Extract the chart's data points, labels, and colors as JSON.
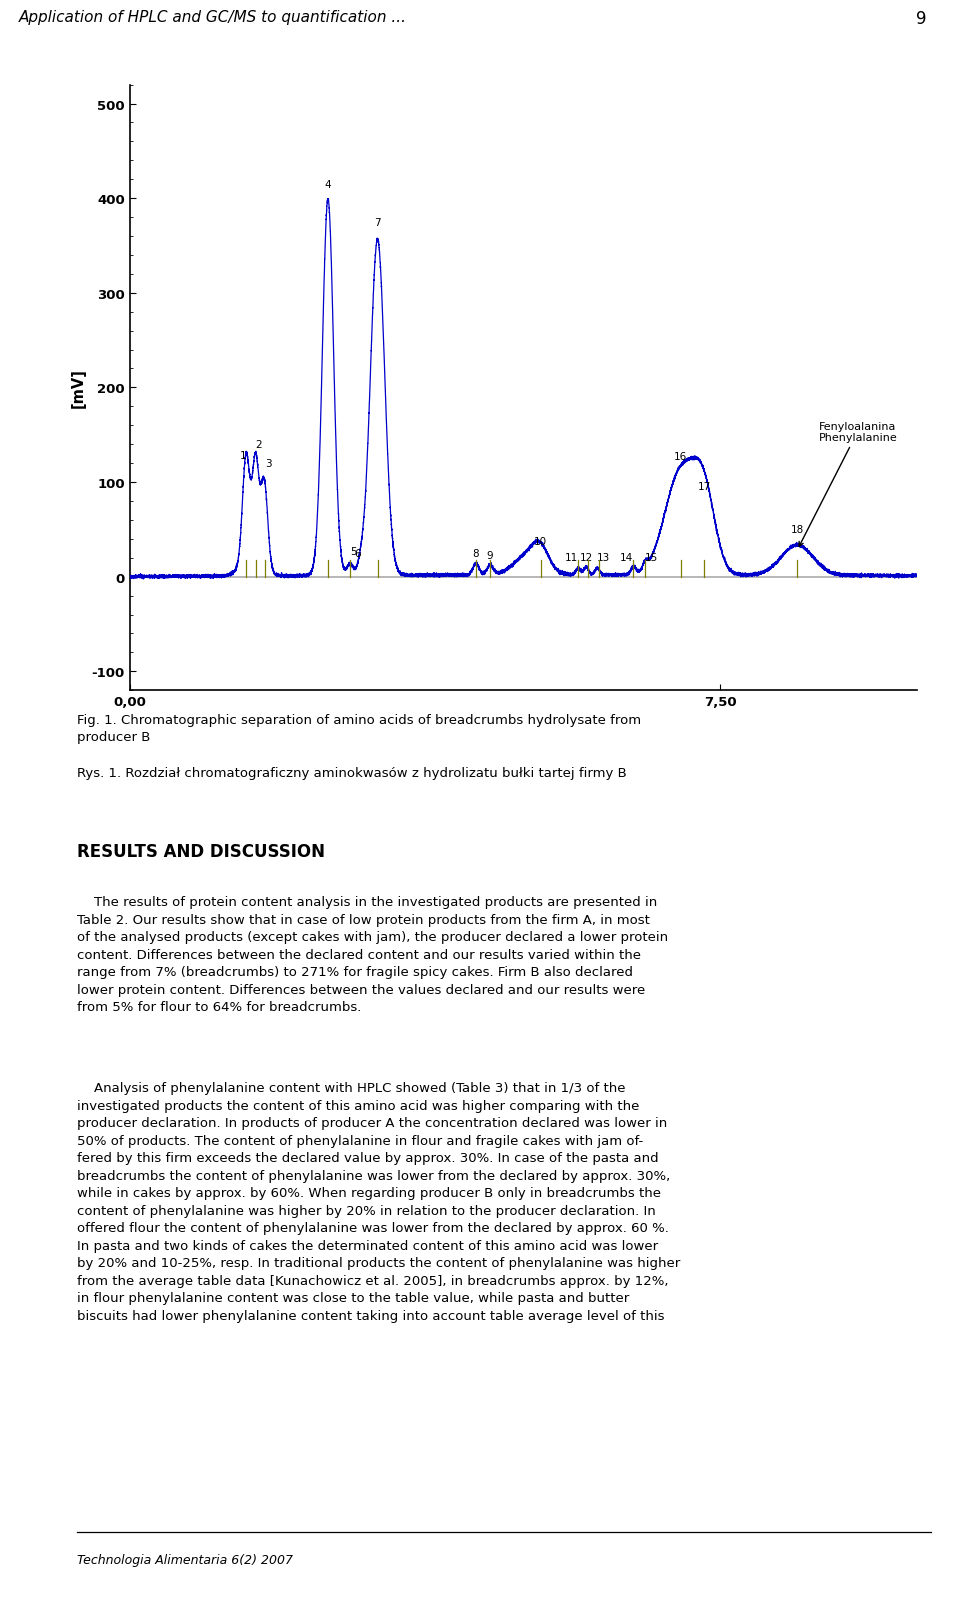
{
  "header_text": "Application of HPLC and GC/MS to quantification ...",
  "page_num": "9",
  "ylabel": "[mV]",
  "yticks": [
    -100,
    0,
    100,
    200,
    300,
    400,
    500
  ],
  "xtick_labels": [
    "0,00",
    "7,50"
  ],
  "ylim": [
    -120,
    520
  ],
  "xlim": [
    0,
    1000
  ],
  "annotation_text": "Fenyloalanina\nPhenylalanine",
  "fig1_caption_en": "Fig. 1. Chromatographic separation of amino acids of breadcrumbs hydrolysate from\nproducer B",
  "fig1_caption_pl": "Rys. 1. Rozdział chromatograficzny aminokwasów z hydrolizatu bułki tartej firmy B",
  "section_title": "RESULTS AND DISCUSSION",
  "paragraph1": "    The results of protein content analysis in the investigated products are presented in\nTable 2. Our results show that in case of low protein products from the firm A, in most\nof the analysed products (except cakes with jam), the producer declared a lower protein\ncontent. Differences between the declared content and our results varied within the\nrange from 7% (breadcrumbs) to 271% for fragile spicy cakes. Firm B also declared\nlower protein content. Differences between the values declared and our results were\nfrom 5% for flour to 64% for breadcrumbs.",
  "paragraph2": "    Analysis of phenylalanine content with HPLC showed (Table 3) that in 1/3 of the\ninvestigated products the content of this amino acid was higher comparing with the\nproducer declaration. In products of producer A the concentration declared was lower in\n50% of products. The content of phenylalanine in flour and fragile cakes with jam of-\nfered by this firm exceeds the declared value by approx. 30%. In case of the pasta and\nbreadcrumbs the content of phenylalanine was lower from the declared by approx. 30%,\nwhile in cakes by approx. by 60%. When regarding producer B only in breadcrumbs the\ncontent of phenylalanine was higher by 20% in relation to the producer declaration. In\noffered flour the content of phenylalanine was lower from the declared by approx. 60 %.\nIn pasta and two kinds of cakes the determinated content of this amino acid was lower\nby 20% and 10-25%, resp. In traditional products the content of phenylalanine was higher\nfrom the average table data [Kunachowicz et al. 2005], in breadcrumbs approx. by 12%,\nin flour phenylalanine content was close to the table value, while pasta and butter\nbiscuits had lower phenylalanine content taking into account table average level of this",
  "footer_text": "Technologia Alimentaria 6(2) 2007",
  "bg_color": "#ffffff",
  "line_color": "#0000cc",
  "marker_color": "#808000"
}
